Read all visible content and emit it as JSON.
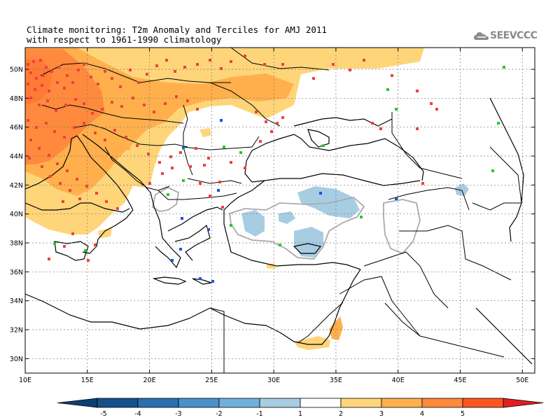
{
  "title_line1": "Climate monitoring: T2m Anomaly and Terciles for AMJ 2011",
  "title_line2": "with respect to 1961-1990 climatology",
  "logo_text": "SEEVCCC",
  "map": {
    "lon_range": [
      10,
      51
    ],
    "lat_range": [
      29,
      51.5
    ],
    "lon_ticks": [
      10,
      15,
      20,
      25,
      30,
      35,
      40,
      45,
      50
    ],
    "lat_ticks": [
      30,
      32,
      34,
      36,
      38,
      40,
      42,
      44,
      46,
      48,
      50
    ],
    "lon_labels": [
      "10E",
      "15E",
      "20E",
      "25E",
      "30E",
      "35E",
      "40E",
      "45E",
      "50E"
    ],
    "lat_labels": [
      "30N",
      "32N",
      "34N",
      "36N",
      "38N",
      "40N",
      "42N",
      "44N",
      "46N",
      "48N",
      "50N"
    ]
  },
  "colorbar": {
    "labels": [
      "-5",
      "-4",
      "-3",
      "-2",
      "-1",
      "1",
      "2",
      "3",
      "4",
      "5"
    ],
    "colors": [
      "#16508a",
      "#2a6fb0",
      "#4a91cc",
      "#72b0dc",
      "#a7cde3",
      "#ffffff",
      "#ffd57a",
      "#ffb04d",
      "#ff8a3d",
      "#ff5522"
    ],
    "low_arrow_color": "#0c3f73",
    "high_arrow_color": "#e21f1f"
  },
  "tercile_colors": {
    "upper": "#f04040",
    "middle": "#22cc22",
    "lower": "#1f4fe0"
  }
}
